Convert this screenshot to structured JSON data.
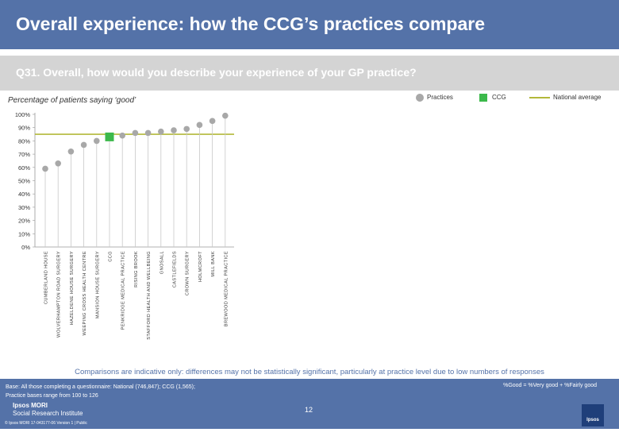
{
  "header": {
    "title": "Overall experience: how the CCG’s practices compare"
  },
  "question": {
    "text": "Q31. Overall, how would you describe your experience of your GP practice?"
  },
  "legend": {
    "practices": "Practices",
    "ccg": "CCG",
    "national": "National average"
  },
  "footer": {
    "note": "Comparisons are indicative only: differences may not be statistically significant, particularly at practice level due to low numbers of responses",
    "base_line1": "Base: All those completing a questionnaire: National (746,847); CCG (1,565);",
    "base_line2": "Practice bases range from 100 to 126",
    "good_definition": "%Good = %Very good + %Fairly good",
    "logo_line1": "Ipsos MORI",
    "logo_line2": "Social Research Institute",
    "page_number": "12",
    "copyright": "© Ipsos MORI     17-043177-06 Version 1 | Public",
    "badge_text": "Ipsos"
  },
  "colors": {
    "header_blue": "#5472a8",
    "practice_grey": "#a8a8a8",
    "ccg_green": "#3cb94b",
    "national_line": "#b3b83a",
    "stem_grey": "#c8c8c8"
  },
  "chart_data": {
    "type": "scatter",
    "title": "Percentage of patients saying ‘good’",
    "ylim": [
      0,
      100
    ],
    "yticks": [
      0,
      10,
      20,
      30,
      40,
      50,
      60,
      70,
      80,
      90,
      100
    ],
    "ytick_labels": [
      "0%",
      "10%",
      "20%",
      "30%",
      "40%",
      "50%",
      "60%",
      "70%",
      "80%",
      "90%",
      "100%"
    ],
    "national_average": 85,
    "categories": [
      "CUMBERLAND HOUSE",
      "WOLVERHAMPTON ROAD SURGERY",
      "HAZELDENE HOUSE SURGERY",
      "WEEPING CROSS HEALTH CENTRE",
      "MANSION HOUSE SURGERY",
      "CCG",
      "PENKRIDGE MEDICAL PRACTICE",
      "RISING BROOK",
      "STAFFORD HEALTH AND WELLBEING",
      "GNOSALL",
      "CASTLEFIELDS",
      "CROWN SURGERY",
      "HOLMCROFT",
      "MILL BANK",
      "BREWOOD MEDICAL PRACTICE"
    ],
    "values": [
      59,
      63,
      72,
      77,
      80,
      83,
      84,
      86,
      86,
      87,
      88,
      89,
      92,
      95,
      99
    ],
    "is_ccg": [
      false,
      false,
      false,
      false,
      false,
      true,
      false,
      false,
      false,
      false,
      false,
      false,
      false,
      false,
      false
    ]
  }
}
